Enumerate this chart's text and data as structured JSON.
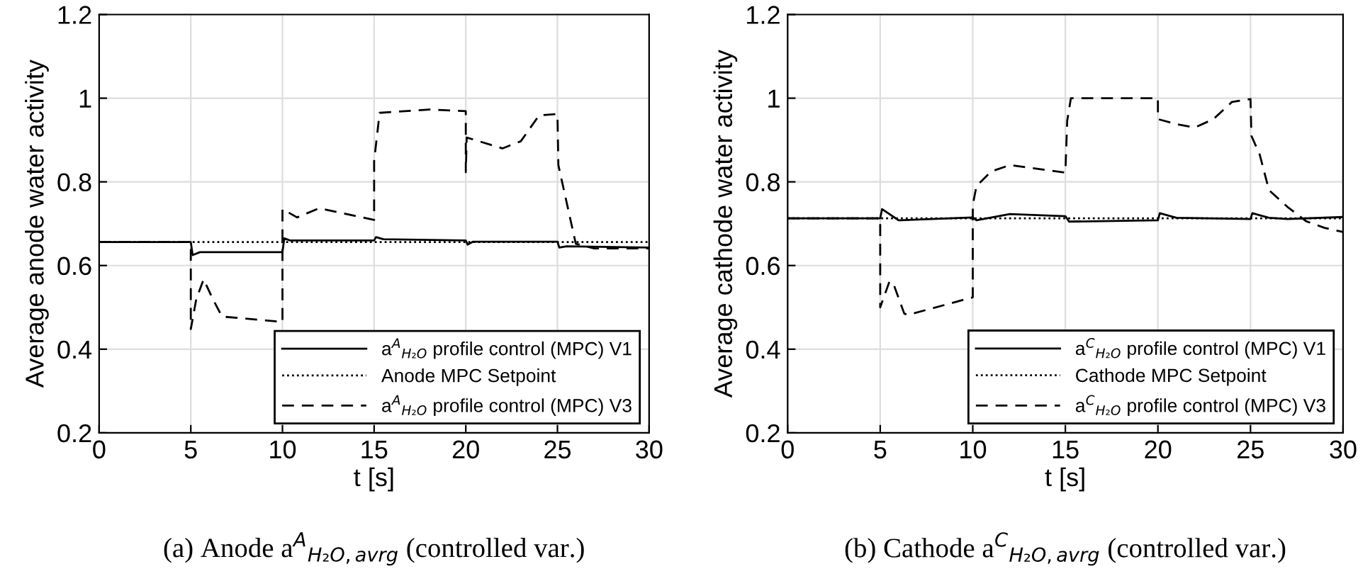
{
  "chart_data": [
    {
      "type": "line",
      "xlabel": "t [s]",
      "ylabel": "Average anode water activity",
      "xlim": [
        0,
        30
      ],
      "ylim": [
        0.2,
        1.2
      ],
      "xticks": [
        0,
        5,
        10,
        15,
        20,
        25,
        30
      ],
      "yticks": [
        0.2,
        0.4,
        0.6,
        0.8,
        1,
        1.2
      ],
      "grid": true,
      "legend": "bottom right",
      "annotations": [
        "(a) Anode a$^{A}$$_{H₂O,avrg}$ (controlled var.)"
      ],
      "series": [
        {
          "name": "a$^{A}$$_{H₂O}$ profile control (MPC) V1",
          "color": "#000000",
          "line_style": "solid",
          "x": [
            0,
            5,
            5.1,
            5.5,
            10,
            10.1,
            10.4,
            15,
            15.1,
            15.5,
            20,
            20.1,
            20.4,
            25,
            25.1,
            25.5,
            30
          ],
          "values": [
            0.656,
            0.656,
            0.625,
            0.632,
            0.632,
            0.665,
            0.66,
            0.66,
            0.668,
            0.663,
            0.66,
            0.65,
            0.657,
            0.657,
            0.643,
            0.646,
            0.643
          ]
        },
        {
          "name": "Anode MPC Setpoint",
          "color": "#000000",
          "line_style": "dotted",
          "x": [
            0,
            30
          ],
          "values": [
            0.656,
            0.656
          ]
        },
        {
          "name": "a$^{A}$$_{H₂O}$ profile control (MPC) V3",
          "color": "#000000",
          "line_style": "dashed",
          "x": [
            0,
            5,
            5,
            5.3,
            5.7,
            6.2,
            6.7,
            10,
            10,
            10.8,
            12,
            15,
            15,
            15.3,
            18,
            20,
            20,
            20.05,
            22,
            23,
            24,
            25,
            25.05,
            26,
            27,
            30
          ],
          "values": [
            0.656,
            0.656,
            0.448,
            0.52,
            0.567,
            0.52,
            0.478,
            0.465,
            0.735,
            0.715,
            0.737,
            0.709,
            0.85,
            0.965,
            0.973,
            0.969,
            0.823,
            0.906,
            0.88,
            0.897,
            0.959,
            0.962,
            0.84,
            0.652,
            0.641,
            0.641
          ]
        }
      ]
    },
    {
      "type": "line",
      "xlabel": "t [s]",
      "ylabel": "Average cathode water activity",
      "xlim": [
        0,
        30
      ],
      "ylim": [
        0.2,
        1.2
      ],
      "xticks": [
        0,
        5,
        10,
        15,
        20,
        25,
        30
      ],
      "yticks": [
        0.2,
        0.4,
        0.6,
        0.8,
        1,
        1.2
      ],
      "grid": true,
      "legend": "bottom right",
      "annotations": [
        "(b) Cathode a$^{C}$$_{H₂O,avrg}$ (controlled var.)"
      ],
      "series": [
        {
          "name": "a$^{C}$$_{H₂O}$ profile control (MPC) V1",
          "color": "#000000",
          "line_style": "solid",
          "x": [
            0,
            5,
            5.1,
            6,
            10,
            10.2,
            12,
            15,
            15.2,
            20,
            20.1,
            21,
            25,
            25.1,
            26,
            27,
            30
          ],
          "values": [
            0.713,
            0.713,
            0.735,
            0.708,
            0.715,
            0.708,
            0.723,
            0.718,
            0.705,
            0.708,
            0.725,
            0.714,
            0.711,
            0.725,
            0.714,
            0.711,
            0.716
          ]
        },
        {
          "name": "Cathode MPC Setpoint",
          "color": "#000000",
          "line_style": "dotted",
          "x": [
            0,
            30
          ],
          "values": [
            0.713,
            0.713
          ]
        },
        {
          "name": "a$^{C}$$_{H₂O}$ profile control (MPC) V3",
          "color": "#000000",
          "line_style": "dashed",
          "x": [
            0,
            5,
            5,
            5.5,
            5.7,
            6.3,
            6.5,
            10,
            10,
            10.2,
            11,
            12,
            15,
            15.1,
            15.3,
            20,
            20,
            21,
            22,
            23,
            24,
            25,
            25.05,
            25.5,
            26,
            27,
            28,
            29,
            30
          ],
          "values": [
            0.713,
            0.713,
            0.5,
            0.562,
            0.558,
            0.485,
            0.482,
            0.524,
            0.745,
            0.79,
            0.825,
            0.84,
            0.822,
            0.946,
            1.0,
            1.0,
            0.95,
            0.938,
            0.93,
            0.95,
            0.991,
            0.998,
            0.91,
            0.865,
            0.78,
            0.74,
            0.706,
            0.69,
            0.68
          ]
        }
      ]
    }
  ]
}
